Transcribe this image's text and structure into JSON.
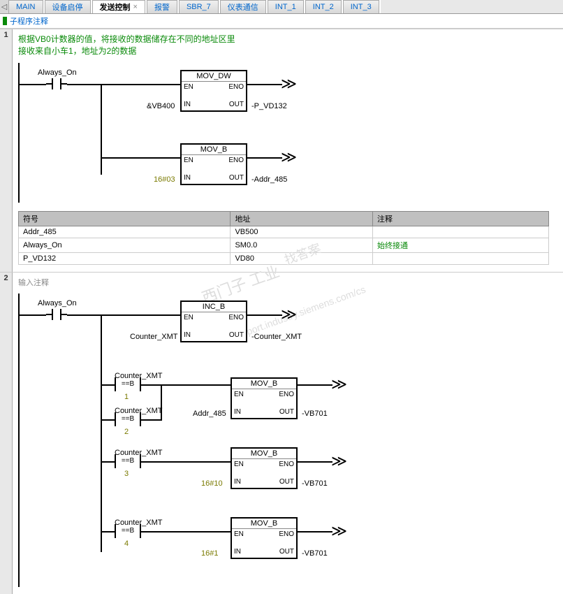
{
  "tabs": {
    "items": [
      "MAIN",
      "设备启停",
      "发送控制",
      "报警",
      "SBR_7",
      "仪表通信",
      "INT_1",
      "INT_2",
      "INT_3"
    ],
    "active_index": 2,
    "close_glyph": "×",
    "nav_left": "◁",
    "nav_right": "▷"
  },
  "section": {
    "title": "子程序注释"
  },
  "network1": {
    "num": "1",
    "comment_line1": "根据VB0计数器的值，将接收的数据储存在不同的地址区里",
    "comment_line2": "接收来自小车1，地址为2的数据",
    "contact_label": "Always_On",
    "box1": {
      "title": "MOV_DW",
      "en": "EN",
      "eno": "ENO",
      "inlab": "IN",
      "outlab": "OUT",
      "in_val": "&VB400",
      "out_val": "P_VD132"
    },
    "box2": {
      "title": "MOV_B",
      "en": "EN",
      "eno": "ENO",
      "inlab": "IN",
      "outlab": "OUT",
      "in_val": "16#03",
      "out_val": "Addr_485"
    },
    "symtable": {
      "headers": [
        "符号",
        "地址",
        "注释"
      ],
      "rows": [
        [
          "Addr_485",
          "VB500",
          ""
        ],
        [
          "Always_On",
          "SM0.0",
          "始终接通"
        ],
        [
          "P_VD132",
          "VD80",
          ""
        ]
      ]
    }
  },
  "network2": {
    "num": "2",
    "comment": "输入注释",
    "contact_label": "Always_On",
    "box_inc": {
      "title": "INC_B",
      "en": "EN",
      "eno": "ENO",
      "inlab": "IN",
      "outlab": "OUT",
      "in_val": "Counter_XMT",
      "out_val": "Counter_XMT"
    },
    "cmp_label": "Counter_XMT",
    "cmp_op": "==B",
    "cmp_vals": [
      "1",
      "2",
      "3",
      "4"
    ],
    "mov": {
      "title": "MOV_B",
      "en": "EN",
      "eno": "ENO",
      "inlab": "IN",
      "outlab": "OUT"
    },
    "mov1": {
      "in_val": "Addr_485",
      "out_val": "VB701"
    },
    "mov2": {
      "in_val": "16#10",
      "out_val": "VB701"
    },
    "mov3": {
      "in_val": "16#1",
      "out_val": "VB701"
    }
  },
  "watermarks": {
    "w1": "找答案",
    "w2": "西门子 工业",
    "w3": "support.industry.siemens.com/cs"
  }
}
